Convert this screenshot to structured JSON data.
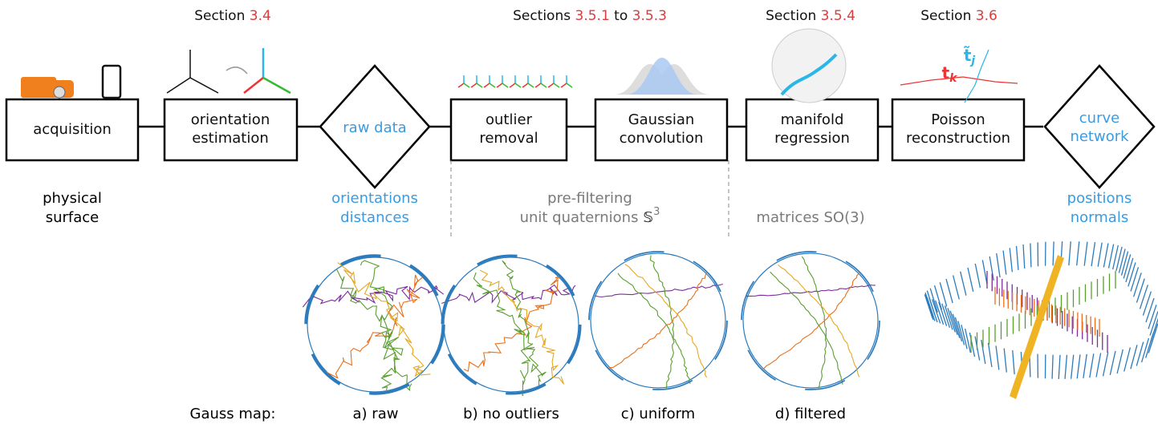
{
  "sections": [
    {
      "text": "Section",
      "ref": "3.4"
    },
    {
      "text": "Sections",
      "ref": "3.5.1",
      "joiner": "to",
      "ref2": "3.5.3"
    },
    {
      "text": "Section",
      "ref": "3.5.4"
    },
    {
      "text": "Section",
      "ref": "3.6"
    }
  ],
  "nodes": [
    {
      "label": [
        "acquisition"
      ]
    },
    {
      "label": [
        "orientation",
        "estimation"
      ]
    },
    {
      "label": [
        "raw data"
      ]
    },
    {
      "label": [
        "outlier",
        "removal"
      ]
    },
    {
      "label": [
        "Gaussian",
        "convolution"
      ]
    },
    {
      "label": [
        "manifold",
        "regression"
      ]
    },
    {
      "label": [
        "Poisson",
        "reconstruction"
      ]
    },
    {
      "label": [
        "curve",
        "network"
      ]
    }
  ],
  "annotations": [
    {
      "symbol": "t",
      "subscript": "k"
    },
    {
      "symbol": "t̃",
      "subscript": "j"
    }
  ],
  "stage_labels": [
    {
      "lines": [
        "physical",
        "surface"
      ]
    },
    {
      "lines": [
        "orientations",
        "distances"
      ]
    },
    {
      "lines": [
        "pre-filtering",
        "unit quaternions"
      ],
      "math": "𝕊",
      "superscript": "3"
    },
    {
      "lines": [
        "matrices SO(3)"
      ]
    },
    {
      "lines": [
        "positions",
        "normals"
      ]
    }
  ],
  "gauss_map": {
    "label": "Gauss map:",
    "panels": [
      "a) raw",
      "b) no outliers",
      "c) uniform",
      "d) filtered"
    ]
  }
}
